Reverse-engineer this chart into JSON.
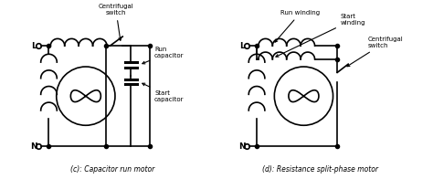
{
  "title_c": "(c): Capacitor run motor",
  "title_d": "(d): Resistance split-phase motor",
  "label_L": "L",
  "label_N": "N",
  "label_centrifugal_switch_c": "Centrifugal\nswitch",
  "label_run_cap": "Run\ncapacitor",
  "label_start_cap": "Start\ncapacitor",
  "label_run_winding": "Run winding",
  "label_start_winding": "Start\nwinding",
  "label_centrifugal_switch_d": "Centrifugal\nswitch",
  "bg_color": "#ffffff",
  "line_color": "#000000",
  "lw": 1.2,
  "font_size": 5.5
}
